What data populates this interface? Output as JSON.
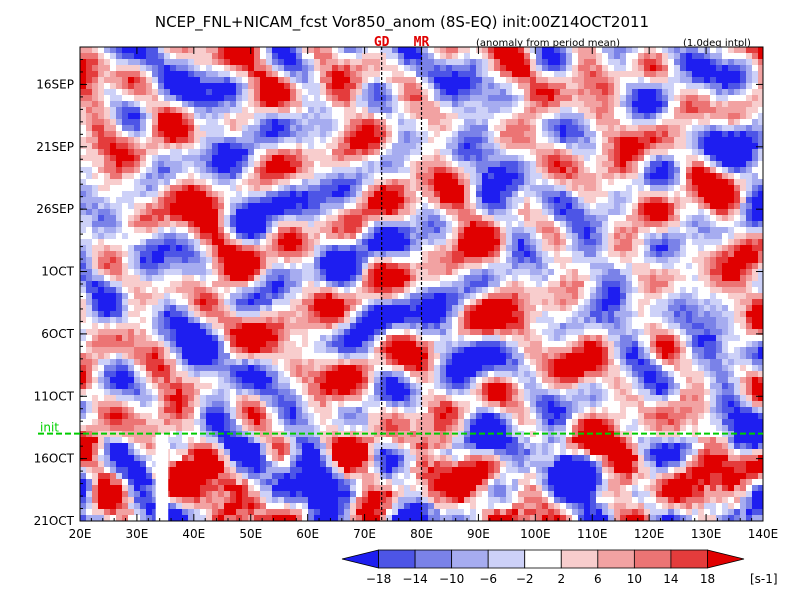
{
  "chart_data": {
    "type": "heatmap",
    "title": "NCEP_FNL+NICAM_fcst Vor850_anom (8S-EQ) init:00Z14OCT2011",
    "subtitle_left": "(anomaly from period mean)",
    "subtitle_right": "(1.0deg intpl)",
    "xlim": [
      20,
      140
    ],
    "x_ticks": [
      {
        "value": 20,
        "label": "20E"
      },
      {
        "value": 30,
        "label": "30E"
      },
      {
        "value": 40,
        "label": "40E"
      },
      {
        "value": 50,
        "label": "50E"
      },
      {
        "value": 60,
        "label": "60E"
      },
      {
        "value": 70,
        "label": "70E"
      },
      {
        "value": 80,
        "label": "80E"
      },
      {
        "value": 90,
        "label": "90E"
      },
      {
        "value": 100,
        "label": "100E"
      },
      {
        "value": 110,
        "label": "110E"
      },
      {
        "value": 120,
        "label": "120E"
      },
      {
        "value": 130,
        "label": "130E"
      },
      {
        "value": 140,
        "label": "140E"
      }
    ],
    "y_range": [
      "2011-09-13",
      "2011-10-21"
    ],
    "y_ticks": [
      {
        "value": "2011-09-16",
        "label": "16SEP"
      },
      {
        "value": "2011-09-21",
        "label": "21SEP"
      },
      {
        "value": "2011-09-26",
        "label": "26SEP"
      },
      {
        "value": "2011-10-01",
        "label": "1OCT"
      },
      {
        "value": "2011-10-06",
        "label": "6OCT"
      },
      {
        "value": "2011-10-11",
        "label": "11OCT"
      },
      {
        "value": "2011-10-16",
        "label": "16OCT"
      },
      {
        "value": "2011-10-21",
        "label": "21OCT"
      }
    ],
    "init_line": {
      "value": "2011-10-14",
      "label": "init",
      "color": "#00cc00"
    },
    "markers": [
      {
        "value": 73,
        "label": "GD"
      },
      {
        "value": 80,
        "label": "MR"
      }
    ],
    "colorbar": {
      "unit": "[s-1]",
      "levels": [
        -18,
        -14,
        -10,
        -6,
        -2,
        2,
        6,
        10,
        14,
        18
      ],
      "colors": [
        "#1e1ef0",
        "#4d55e6",
        "#7a82e8",
        "#a6acf0",
        "#cdd1f8",
        "#ffffff",
        "#f8cdcd",
        "#f2a2a2",
        "#ec7474",
        "#e43c3c",
        "#e00000"
      ]
    }
  }
}
